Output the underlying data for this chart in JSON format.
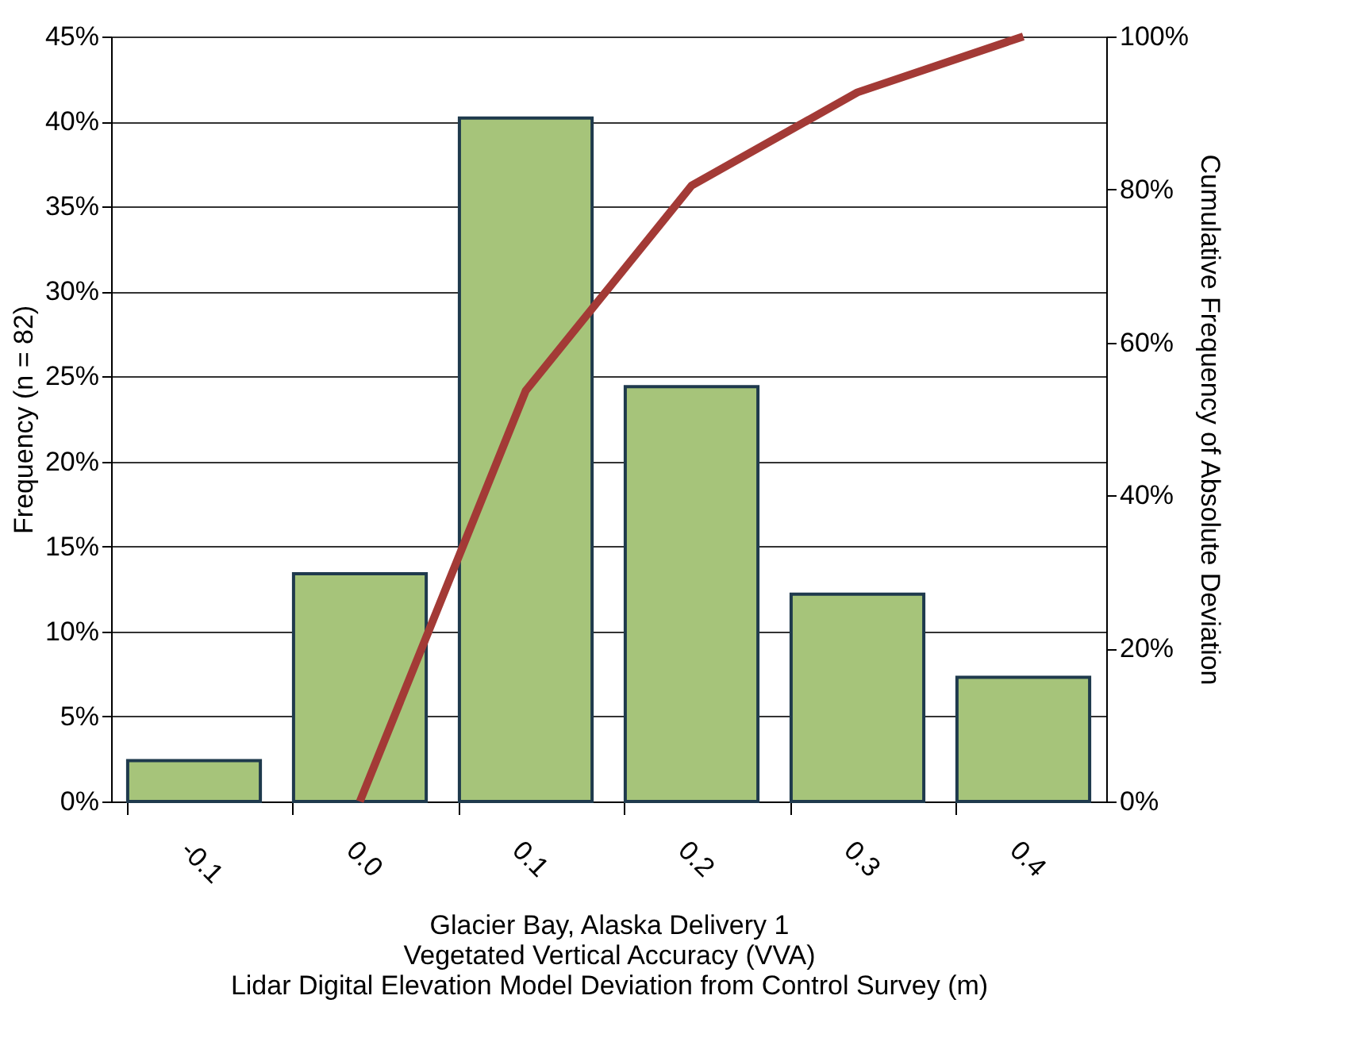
{
  "chart_data": {
    "type": "bar",
    "xlabel": "Glacier Bay, Alaska Delivery 1\nVegetated Vertical Accuracy (VVA)\nLidar Digital Elevation Model Deviation from Control Survey (m)",
    "ylabel": "Frequency (n = 82)",
    "y2label": "Cumulative Frequency of Absolute Deviation",
    "categories": [
      "-0.1",
      "0.0",
      "0.1",
      "0.2",
      "0.3",
      "0.4"
    ],
    "series": [
      {
        "color": "#a6c47a",
        "values": [
          2.4,
          13.4,
          40.2,
          24.4,
          12.2,
          7.3
        ]
      },
      {
        "type": "line",
        "axis": "y2",
        "color": "#a33a36",
        "values": [
          null,
          0,
          53.7,
          80.5,
          92.7,
          100
        ]
      }
    ],
    "ylim": [
      0,
      45
    ],
    "yticks": [
      {
        "value": 0,
        "label": "0%"
      },
      {
        "value": 5,
        "label": "5%"
      },
      {
        "value": 10,
        "label": "10%"
      },
      {
        "value": 15,
        "label": "15%"
      },
      {
        "value": 20,
        "label": "20%"
      },
      {
        "value": 25,
        "label": "25%"
      },
      {
        "value": 30,
        "label": "30%"
      },
      {
        "value": 35,
        "label": "35%"
      },
      {
        "value": 40,
        "label": "40%"
      },
      {
        "value": 45,
        "label": "45%"
      }
    ],
    "y2lim": [
      0,
      100
    ],
    "y2ticks": [
      {
        "value": 0,
        "label": "0%"
      },
      {
        "value": 20,
        "label": "20%"
      },
      {
        "value": 40,
        "label": "40%"
      },
      {
        "value": 60,
        "label": "60%"
      },
      {
        "value": 80,
        "label": "80%"
      },
      {
        "value": 100,
        "label": "100%"
      }
    ],
    "grid": "y",
    "marker": "none",
    "line_style": "solid"
  }
}
